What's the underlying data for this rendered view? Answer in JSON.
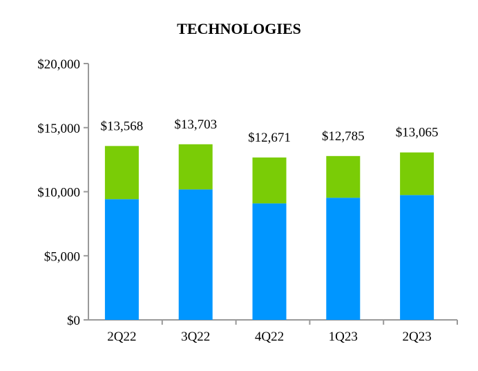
{
  "chart_data": {
    "type": "bar",
    "stacked": true,
    "title": "TECHNOLOGIES",
    "xlabel": "",
    "ylabel": "",
    "categories": [
      "2Q22",
      "3Q22",
      "4Q22",
      "1Q23",
      "2Q23"
    ],
    "series": [
      {
        "color": "#0096FF",
        "values": [
          9420,
          10180,
          9090,
          9530,
          9740
        ]
      },
      {
        "color": "#7ACC06",
        "values": [
          4148,
          3523,
          3581,
          3255,
          3325
        ]
      }
    ],
    "totals": [
      13568,
      13703,
      12671,
      12785,
      13065
    ],
    "total_labels": [
      "$13,568",
      "$13,703",
      "$12,671",
      "$12,785",
      "$13,065"
    ],
    "ylim": [
      0,
      20000
    ],
    "yticks": [
      0,
      5000,
      10000,
      15000,
      20000
    ],
    "ytick_labels": [
      "$0",
      "$5,000",
      "$10,000",
      "$15,000",
      "$20,000"
    ],
    "grid": false,
    "legend": "none",
    "axis_color": "#999999"
  }
}
